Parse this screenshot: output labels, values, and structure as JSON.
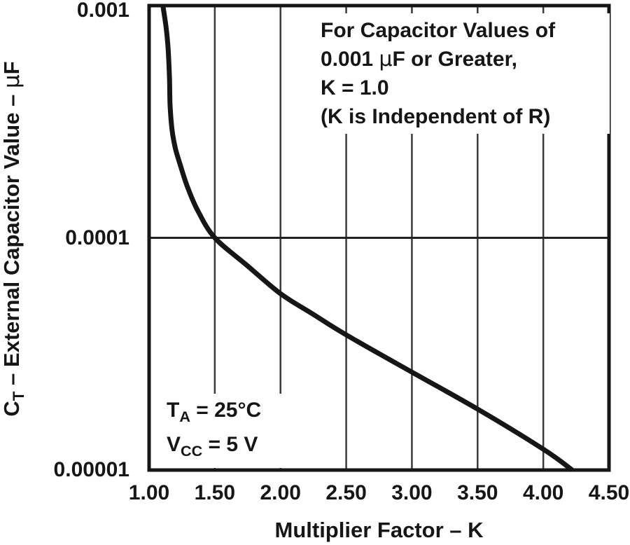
{
  "chart_data": {
    "type": "line",
    "title": "",
    "xlabel": "Multiplier Factor – K",
    "ylabel": "CT – External Capacitor Value – μF",
    "ylabel_parts": {
      "base": "C",
      "sub": "T",
      "mid": " – External Capacitor Value – ",
      "mu": "μ",
      "unit": "F"
    },
    "x_axis": {
      "min": 1.0,
      "max": 4.5,
      "scale": "linear"
    },
    "y_axis": {
      "min": 1e-05,
      "max": 0.001,
      "scale": "log",
      "unit": "μF"
    },
    "x_ticks": {
      "values": [
        1.0,
        1.5,
        2.0,
        2.5,
        3.0,
        3.5,
        4.0,
        4.5
      ],
      "labels": [
        "1.00",
        "1.50",
        "2.00",
        "2.50",
        "3.00",
        "3.50",
        "4.00",
        "4.50"
      ]
    },
    "y_ticks": {
      "values": [
        0.001,
        0.0001,
        1e-05
      ],
      "labels": [
        "0.001",
        "0.0001",
        "0.00001"
      ]
    },
    "gridlines": {
      "vertical": [
        1.5,
        2.0,
        2.5,
        3.0,
        3.5,
        4.0
      ],
      "horizontal": [
        0.0001
      ]
    },
    "series": [
      {
        "name": "external-capacitor-value-vs-multiplier-factor",
        "color": "#161616",
        "points": [
          [
            1.105,
            0.001
          ],
          [
            1.13,
            0.0008
          ],
          [
            1.145,
            0.00065
          ],
          [
            1.155,
            0.00049
          ],
          [
            1.16,
            0.00037
          ],
          [
            1.175,
            0.00029
          ],
          [
            1.2,
            0.000243
          ],
          [
            1.235,
            0.000208
          ],
          [
            1.29,
            0.000167
          ],
          [
            1.37,
            0.000131
          ],
          [
            1.5,
            0.0001
          ],
          [
            1.74,
            7.65e-05
          ],
          [
            2.0,
            5.75e-05
          ],
          [
            2.25,
            4.68e-05
          ],
          [
            2.5,
            3.82e-05
          ],
          [
            3.0,
            2.64e-05
          ],
          [
            3.5,
            1.83e-05
          ],
          [
            4.0,
            1.23e-05
          ],
          [
            4.22,
            1e-05
          ]
        ]
      }
    ],
    "annotation": {
      "line1": "For Capacitor Values of",
      "line2_pre": "0.001 ",
      "line2_mu": "μ",
      "line2_post": "F or Greater,",
      "line3": "K = 1.0",
      "line4": "(K is Independent of R)"
    },
    "conditions": [
      {
        "base": "T",
        "sub": "A",
        "rest": " = 25°C"
      },
      {
        "base": "V",
        "sub": "CC",
        "rest": " = 5 V"
      }
    ],
    "colors": {
      "curve": "#161616",
      "border": "#161616",
      "gridline": "#3a3a3a",
      "background": "#ffffff"
    }
  }
}
